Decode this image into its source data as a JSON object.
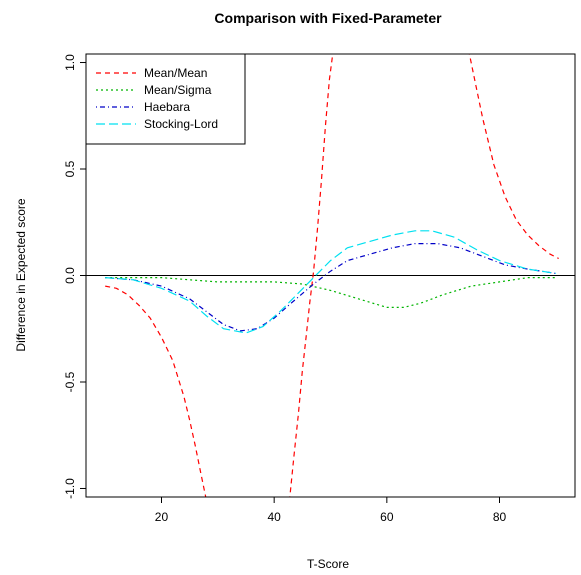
{
  "chart_data": {
    "type": "line",
    "title": "Comparison with Fixed-Parameter",
    "xlabel": "T-Score",
    "ylabel": "Difference in Expected score",
    "xlim": [
      6.6,
      93.4
    ],
    "ylim": [
      -1.04,
      1.04
    ],
    "xticks": [
      20,
      40,
      60,
      80
    ],
    "yticks": [
      -1.0,
      -0.5,
      0.0,
      0.5,
      1.0
    ],
    "ytick_labels": [
      "-1.0",
      "-0.5",
      "0.0",
      "0.5",
      "1.0"
    ],
    "xtick_labels": [
      "20",
      "40",
      "60",
      "80"
    ],
    "reference_line": 0,
    "legend_position": "top-left",
    "series": [
      {
        "name": "Mean/Mean",
        "color": "#ff0000",
        "dash": "dashed",
        "segments": [
          {
            "x": [
              10,
              12,
              14,
              16,
              18,
              20,
              22,
              24,
              25,
              26,
              27,
              28
            ],
            "y": [
              -0.05,
              -0.06,
              -0.09,
              -0.14,
              -0.2,
              -0.29,
              -0.4,
              -0.57,
              -0.68,
              -0.8,
              -0.93,
              -1.06
            ]
          },
          {
            "x": [
              42.7,
              43.5,
              44.3,
              45.0,
              45.7,
              46.3,
              47.0,
              47.7,
              48.4,
              49.1,
              49.8,
              50.5
            ],
            "y": [
              -1.06,
              -0.85,
              -0.65,
              -0.45,
              -0.28,
              -0.13,
              0.02,
              0.22,
              0.45,
              0.7,
              0.92,
              1.06
            ]
          },
          {
            "x": [
              74.5,
              75.5,
              77,
              79,
              81,
              83,
              85,
              87,
              89,
              90.5
            ],
            "y": [
              1.06,
              0.93,
              0.74,
              0.52,
              0.37,
              0.26,
              0.19,
              0.14,
              0.1,
              0.08
            ]
          }
        ]
      },
      {
        "name": "Mean/Sigma",
        "color": "#00b400",
        "dash": "dotted",
        "segments": [
          {
            "x": [
              10,
              15,
              20,
              25,
              30,
              35,
              40,
              45,
              50,
              55,
              60,
              63,
              66,
              70,
              75,
              80,
              85,
              90
            ],
            "y": [
              -0.01,
              -0.01,
              -0.01,
              -0.02,
              -0.03,
              -0.03,
              -0.03,
              -0.04,
              -0.07,
              -0.11,
              -0.15,
              -0.15,
              -0.13,
              -0.09,
              -0.05,
              -0.03,
              -0.01,
              -0.01
            ]
          }
        ]
      },
      {
        "name": "Haebara",
        "color": "#0000c8",
        "dash": "dotdash",
        "segments": [
          {
            "x": [
              10,
              15,
              20,
              25,
              28,
              31,
              34,
              37,
              40,
              43,
              47,
              50,
              53,
              57,
              61,
              65,
              69,
              73,
              77,
              81,
              85,
              90
            ],
            "y": [
              -0.01,
              -0.02,
              -0.05,
              -0.11,
              -0.17,
              -0.23,
              -0.26,
              -0.25,
              -0.2,
              -0.13,
              -0.04,
              0.02,
              0.07,
              0.1,
              0.13,
              0.15,
              0.15,
              0.13,
              0.09,
              0.05,
              0.03,
              0.01
            ]
          }
        ]
      },
      {
        "name": "Stocking-Lord",
        "color": "#00e0f0",
        "dash": "longdash",
        "segments": [
          {
            "x": [
              10,
              15,
              20,
              25,
              28,
              31,
              35,
              38,
              41,
              44,
              47,
              50,
              53,
              57,
              61,
              65,
              68,
              72,
              76,
              80,
              85,
              90
            ],
            "y": [
              -0.01,
              -0.02,
              -0.06,
              -0.12,
              -0.19,
              -0.25,
              -0.27,
              -0.24,
              -0.17,
              -0.09,
              -0.01,
              0.07,
              0.13,
              0.16,
              0.19,
              0.21,
              0.21,
              0.18,
              0.12,
              0.07,
              0.03,
              0.01
            ]
          }
        ]
      }
    ]
  }
}
